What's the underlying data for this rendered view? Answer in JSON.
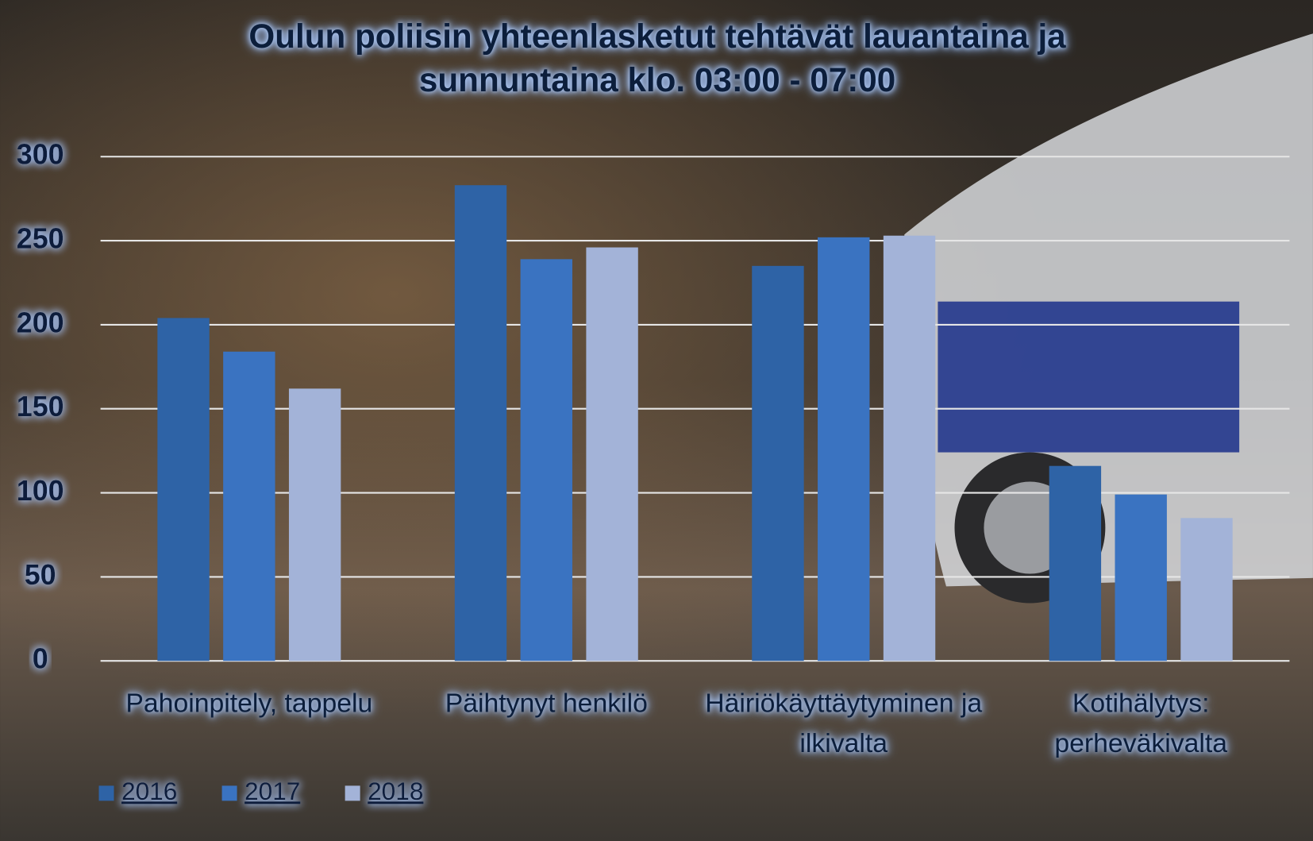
{
  "chart_data": {
    "type": "bar",
    "title": "Oulun poliisin yhteenlasketut tehtävät lauantaina ja sunnuntaina klo. 03:00 - 07:00",
    "categories": [
      "Pahoinpitely, tappelu",
      "Päihtynyt henkilö",
      "Häiriökäyttäytyminen ja ilkivalta",
      "Kotihälytys: perheväkivalta"
    ],
    "series": [
      {
        "name": "2016",
        "color": "#2e63a6",
        "values": [
          204,
          283,
          235,
          116
        ]
      },
      {
        "name": "2017",
        "color": "#3a73c1",
        "values": [
          184,
          239,
          252,
          99
        ]
      },
      {
        "name": "2018",
        "color": "#a3b3d8",
        "values": [
          162,
          246,
          253,
          85
        ]
      }
    ],
    "ylim": [
      0,
      300
    ],
    "yticks": [
      0,
      50,
      100,
      150,
      200,
      250,
      300
    ],
    "grid": true,
    "legend": "bottom-left"
  }
}
